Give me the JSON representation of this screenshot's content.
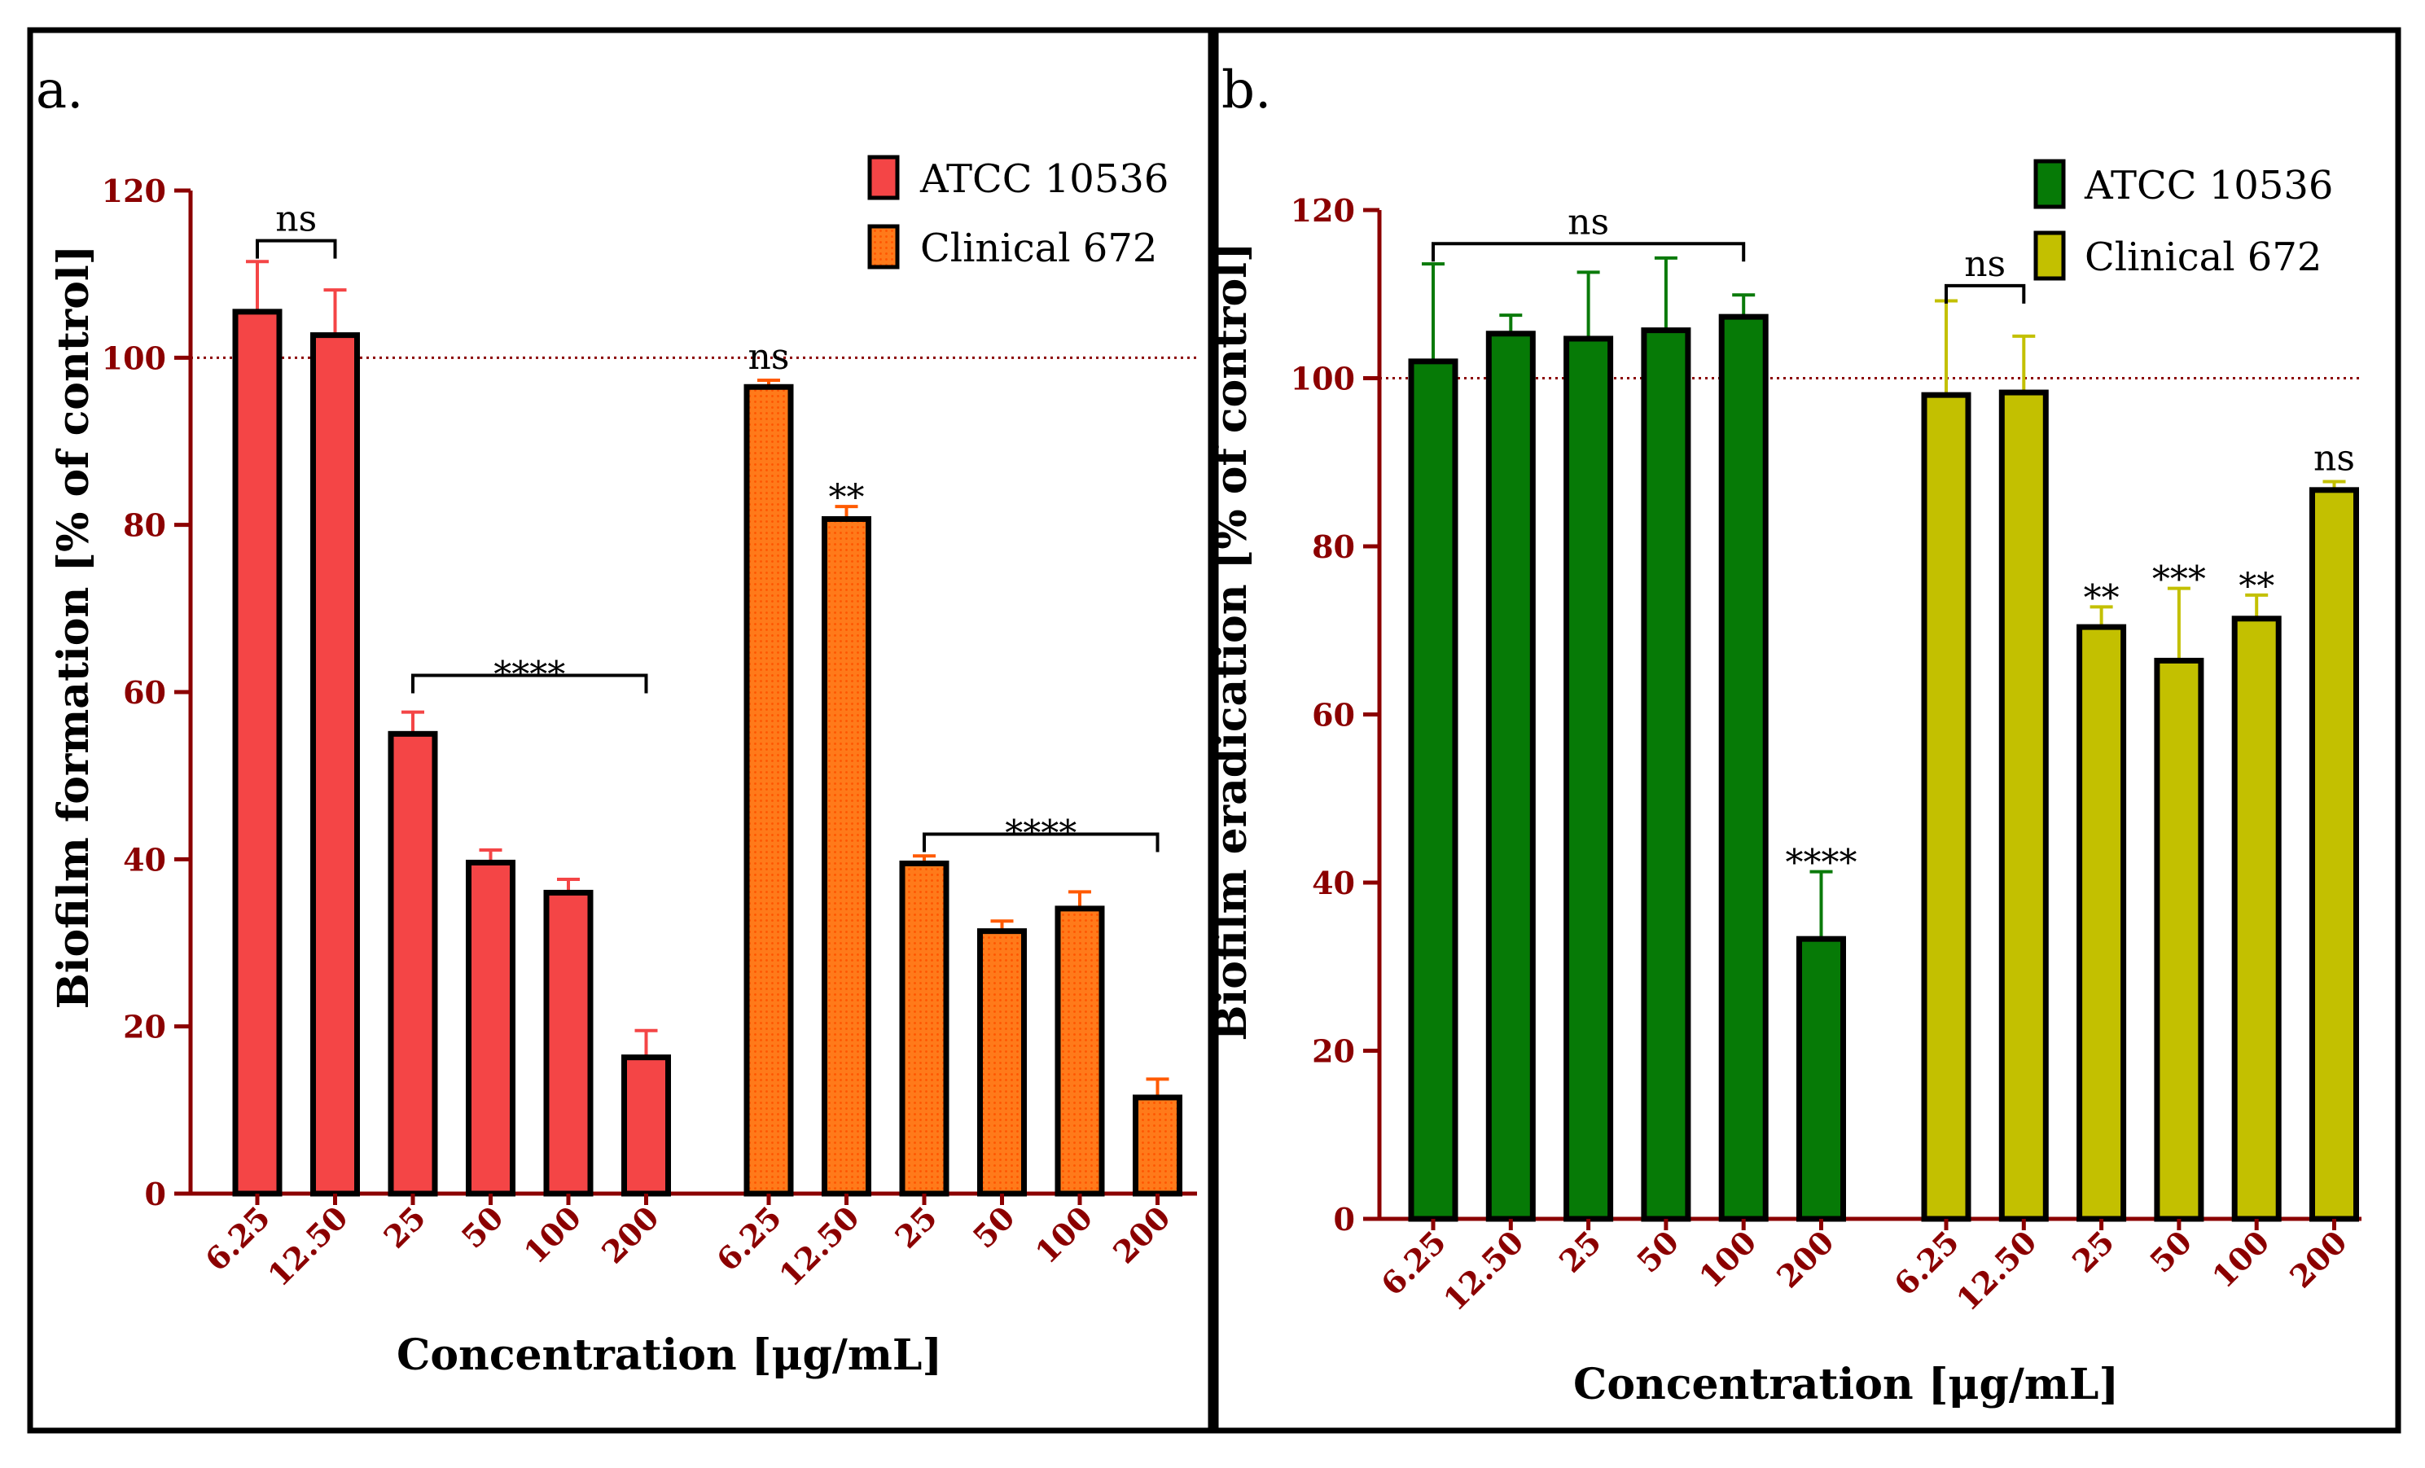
{
  "figure": {
    "colors": {
      "axis": "#8b0000",
      "frame": "#000000",
      "reference_line": "#8b0000"
    }
  },
  "chart_data": [
    {
      "type": "bar",
      "panel_label": "a.",
      "xlabel": "Concentration [μg/mL]",
      "ylabel": "Biofilm formation [% of control]",
      "ylim": [
        0,
        120
      ],
      "yticks": [
        0,
        20,
        40,
        60,
        80,
        100,
        120
      ],
      "reference_line": 100,
      "categories": [
        "6.25",
        "12.50",
        "25",
        "50",
        "100",
        "200"
      ],
      "series": [
        {
          "name": "ATCC 10536",
          "color": "#f44546",
          "error_color": "#f44546",
          "pattern": false,
          "values": [
            105.5,
            102.7,
            55.0,
            39.6,
            36.0,
            16.3
          ],
          "errors": [
            6.0,
            5.4,
            2.6,
            1.5,
            1.6,
            3.2
          ]
        },
        {
          "name": "Clinical 672",
          "color": "#ff7a1a",
          "error_color": "#ff5a00",
          "pattern": true,
          "values": [
            96.5,
            80.7,
            39.5,
            31.4,
            34.1,
            11.5
          ],
          "errors": [
            0.8,
            1.5,
            0.9,
            1.2,
            2.0,
            2.2
          ]
        }
      ],
      "annotations": [
        {
          "text": "ns",
          "type": "bracket",
          "series": 0,
          "from": 0,
          "to": 1,
          "y": 114
        },
        {
          "text": "****",
          "type": "bracket",
          "series": 0,
          "from": 2,
          "to": 5,
          "y": 62
        },
        {
          "text": "ns",
          "type": "label",
          "series": 1,
          "at": 0
        },
        {
          "text": "**",
          "type": "label",
          "series": 1,
          "at": 1
        },
        {
          "text": "****",
          "type": "bracket",
          "series": 1,
          "from": 2,
          "to": 5,
          "y": 43
        }
      ]
    },
    {
      "type": "bar",
      "panel_label": "b.",
      "xlabel": "Concentration [μg/mL]",
      "ylabel": "Biofilm eradication [% of control]",
      "ylim": [
        0,
        120
      ],
      "yticks": [
        0,
        20,
        40,
        60,
        80,
        100,
        120
      ],
      "reference_line": 100,
      "categories": [
        "6.25",
        "12.50",
        "25",
        "50",
        "100",
        "200"
      ],
      "series": [
        {
          "name": "ATCC 10536",
          "color": "#067a06",
          "error_color": "#0a7a0a",
          "pattern": false,
          "values": [
            102.0,
            105.3,
            104.7,
            105.7,
            107.3,
            33.3
          ],
          "errors": [
            11.6,
            2.2,
            7.9,
            8.6,
            2.6,
            8.0
          ]
        },
        {
          "name": "Clinical 672",
          "color": "#c3c000",
          "error_color": "#c3c000",
          "pattern": false,
          "values": [
            98.0,
            98.3,
            70.4,
            66.4,
            71.4,
            86.7
          ],
          "errors": [
            11.2,
            6.7,
            2.4,
            8.6,
            2.8,
            1.0
          ]
        }
      ],
      "annotations": [
        {
          "text": "ns",
          "type": "bracket",
          "series": 0,
          "from": 0,
          "to": 4,
          "y": 116
        },
        {
          "text": "****",
          "type": "label",
          "series": 0,
          "at": 5
        },
        {
          "text": "ns",
          "type": "bracket",
          "series": 1,
          "from": 0,
          "to": 1,
          "y": 111
        },
        {
          "text": "**",
          "type": "label",
          "series": 1,
          "at": 2
        },
        {
          "text": "***",
          "type": "label",
          "series": 1,
          "at": 3
        },
        {
          "text": "**",
          "type": "label",
          "series": 1,
          "at": 4
        },
        {
          "text": "ns",
          "type": "label",
          "series": 1,
          "at": 5
        }
      ]
    }
  ]
}
